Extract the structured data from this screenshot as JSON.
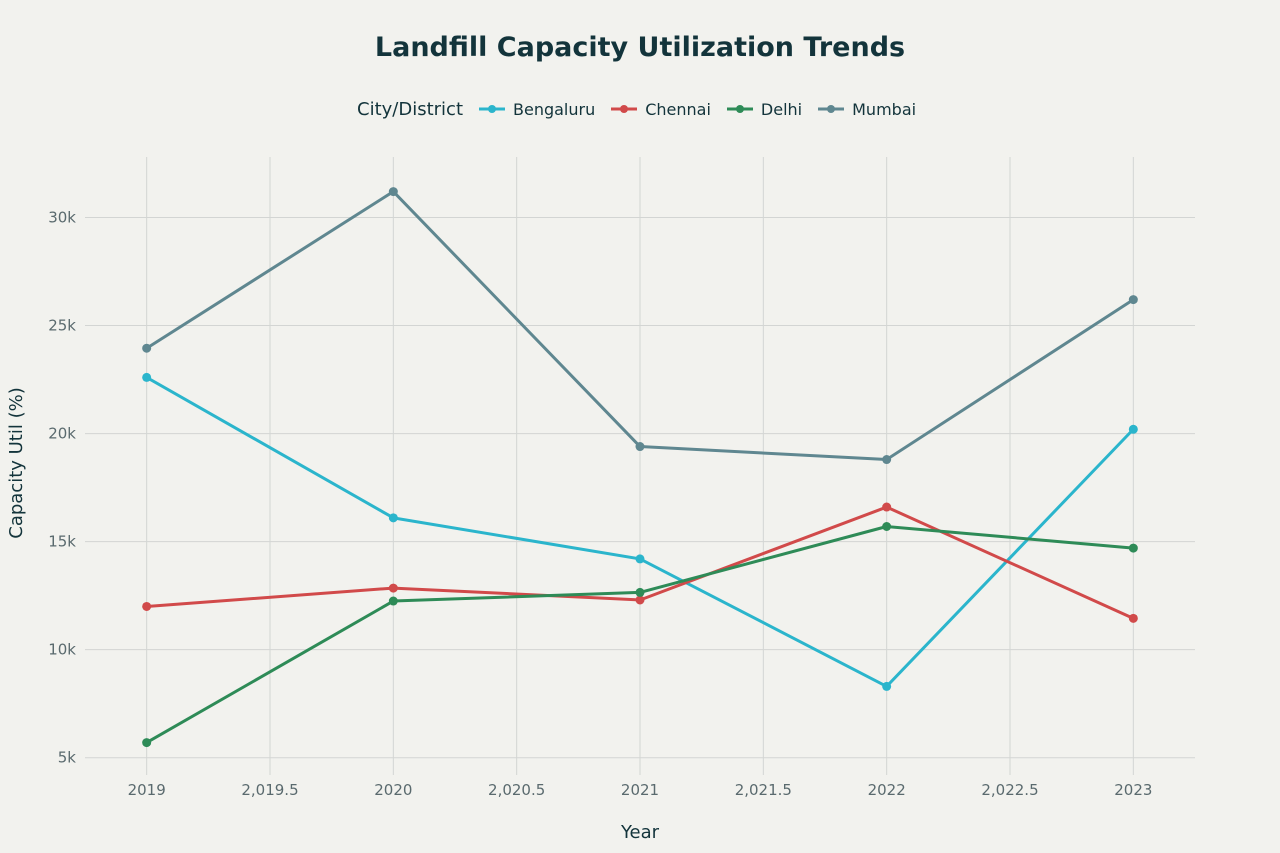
{
  "chart_data": {
    "type": "line",
    "title": "Landfill Capacity Utilization Trends",
    "xlabel": "Year",
    "ylabel": "Capacity Util (%)",
    "legend_title": "City/District",
    "legend_position": "top",
    "grid": true,
    "x": [
      2019,
      2020,
      2021,
      2022,
      2023
    ],
    "xlim": [
      2018.75,
      2023.25
    ],
    "ylim": [
      4200,
      32800
    ],
    "x_ticks": [
      2019,
      2019.5,
      2020,
      2020.5,
      2021,
      2021.5,
      2022,
      2022.5,
      2023
    ],
    "x_tick_labels": [
      "2019",
      "2,019.5",
      "2020",
      "2,020.5",
      "2021",
      "2,021.5",
      "2022",
      "2,022.5",
      "2023"
    ],
    "y_ticks": [
      5000,
      10000,
      15000,
      20000,
      25000,
      30000
    ],
    "y_tick_labels": [
      "5k",
      "10k",
      "15k",
      "20k",
      "25k",
      "30k"
    ],
    "series": [
      {
        "name": "Bengaluru",
        "color": "#2bb5cc",
        "values": [
          22600,
          16100,
          14200,
          8300,
          20200
        ]
      },
      {
        "name": "Chennai",
        "color": "#d14a4a",
        "values": [
          12000,
          12850,
          12300,
          16600,
          11450
        ]
      },
      {
        "name": "Delhi",
        "color": "#2e8b57",
        "values": [
          5700,
          12250,
          12650,
          15700,
          14700
        ]
      },
      {
        "name": "Mumbai",
        "color": "#5f8790",
        "values": [
          23950,
          31200,
          19400,
          18800,
          26200
        ]
      }
    ]
  }
}
